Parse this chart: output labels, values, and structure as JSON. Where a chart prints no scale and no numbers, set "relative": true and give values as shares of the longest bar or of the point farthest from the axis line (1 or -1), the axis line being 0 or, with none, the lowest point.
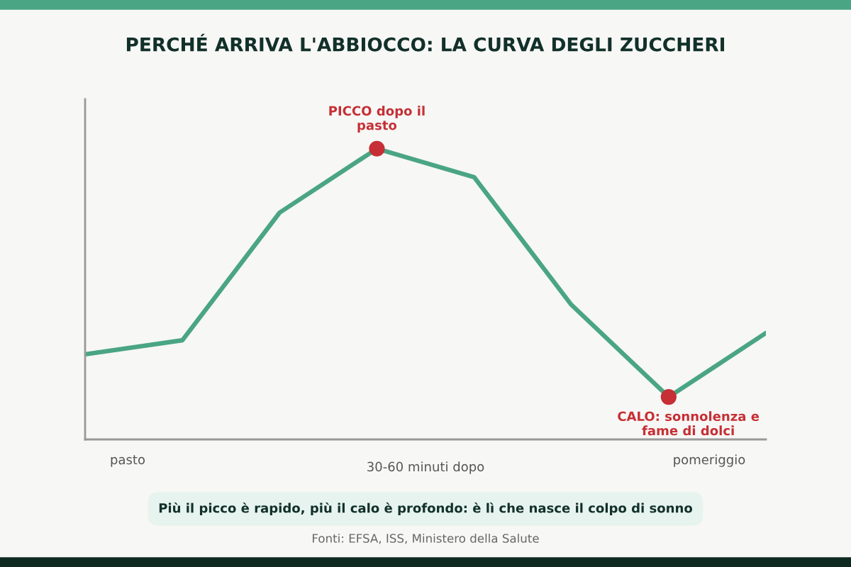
{
  "chart_data": {
    "type": "line",
    "title": "PERCHÉ ARRIVA L'ABBIOCCO: LA CURVA DEGLI ZUCCHERI",
    "relative": true,
    "categories": [
      null,
      null,
      null,
      null,
      null,
      null,
      null,
      null
    ],
    "series": [
      {
        "color": "#4aa584",
        "values": [
          0.293,
          0.341,
          0.78,
          1,
          0.902,
          0.463,
          0.146,
          0.366
        ]
      }
    ],
    "annotations": [
      {
        "text": "PICCO dopo il\npasto",
        "y": 1
      },
      "CALO: sonnolenza e\nfame di dolci",
      "pasto",
      "30-60 minuti dopo",
      "pomeriggio",
      "Più il picco è rapido, più il calo è profondo: è lì che nasce il colpo di sonno",
      "Fonti: EFSA, ISS, Ministero della Salute"
    ],
    "grid": false,
    "legend": false
  }
}
